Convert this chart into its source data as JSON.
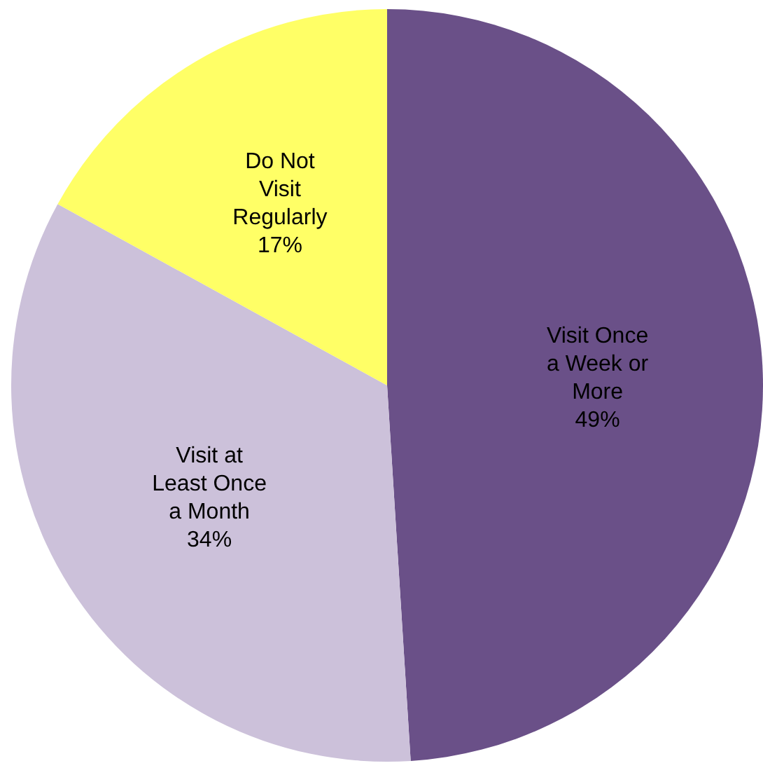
{
  "chart_data": {
    "type": "pie",
    "categories": [
      "Visit Once a Week or More",
      "Visit at Least Once a Month",
      "Do Not Visit Regularly"
    ],
    "values": [
      49,
      34,
      17
    ],
    "colors": [
      "#6a5088",
      "#ccc1da",
      "#ffff66"
    ],
    "value_labels": [
      "49%",
      "34%",
      "17%"
    ]
  }
}
